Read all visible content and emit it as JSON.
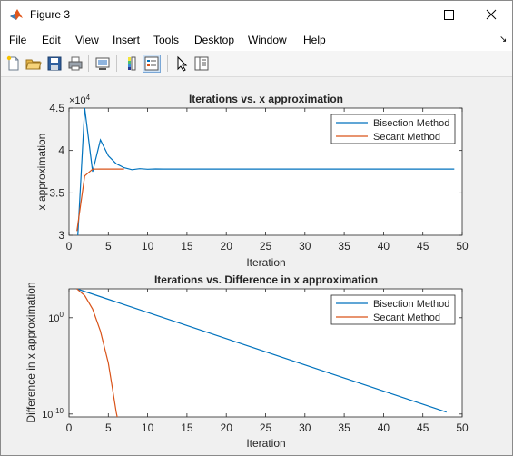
{
  "window": {
    "title": "Figure 3",
    "icon": "matlab-icon",
    "controls": [
      "minimize-icon",
      "maximize-icon",
      "close-icon"
    ]
  },
  "menu": [
    "File",
    "Edit",
    "View",
    "Insert",
    "Tools",
    "Desktop",
    "Window",
    "Help"
  ],
  "toolbar": {
    "icons": [
      "new-figure-icon",
      "open-file-icon",
      "save-icon",
      "print-icon",
      "link-plot-icon",
      "insert-colorbar-icon",
      "insert-legend-icon",
      "edit-plot-arrow-icon",
      "property-inspector-icon"
    ],
    "pressed": "insert-legend-icon"
  },
  "colors": {
    "series1": "#0072bd",
    "series2": "#d95319",
    "axes_bg": "#ffffff",
    "figure_bg": "#f0f0f0"
  },
  "plots": {
    "top": {
      "title": "Iterations vs. x approximation",
      "xlabel": "Iteration",
      "ylabel": "x approximation",
      "multiplier_base": "×10",
      "multiplier_exp": "4",
      "xticks": [
        "0",
        "5",
        "10",
        "15",
        "20",
        "25",
        "30",
        "35",
        "40",
        "45",
        "50"
      ],
      "yticks": [
        "3",
        "3.5",
        "4",
        "4.5"
      ],
      "legend": [
        "Bisection Method",
        "Secant Method"
      ]
    },
    "bottom": {
      "title": "Iterations vs. Difference in x approximation",
      "xlabel": "Iteration",
      "ylabel": "Difference in x approximation",
      "xticks": [
        "0",
        "5",
        "10",
        "15",
        "20",
        "25",
        "30",
        "35",
        "40",
        "45",
        "50"
      ],
      "yticks": [
        {
          "base": "10",
          "exp": "0"
        },
        {
          "base": "10",
          "exp": "-10"
        }
      ],
      "legend": [
        "Bisection Method",
        "Secant Method"
      ]
    }
  },
  "chart_data": [
    {
      "type": "line",
      "title": "Iterations vs. x approximation",
      "xlabel": "Iteration",
      "ylabel": "x approximation",
      "xlim": [
        0,
        50
      ],
      "ylim": [
        30000,
        45000
      ],
      "y_multiplier": "×10^4",
      "grid": false,
      "legend_position": "top-right",
      "series": [
        {
          "name": "Bisection Method",
          "x": [
            1,
            2,
            3,
            4,
            5,
            6,
            7,
            8,
            9,
            10,
            11,
            12,
            13,
            14,
            15,
            20,
            25,
            30,
            35,
            40,
            45,
            49
          ],
          "y": [
            28000,
            45000,
            37500,
            41250,
            39375,
            38438,
            37969,
            37734,
            37852,
            37793,
            37822,
            37808,
            37815,
            37811,
            37813,
            37812,
            37812,
            37812,
            37812,
            37812,
            37812,
            37812
          ]
        },
        {
          "name": "Secant Method",
          "x": [
            1,
            2,
            3,
            4,
            5,
            6,
            7
          ],
          "y": [
            30500,
            37000,
            37800,
            37812,
            37812,
            37812,
            37812
          ]
        }
      ]
    },
    {
      "type": "line",
      "title": "Iterations vs. Difference in x approximation",
      "xlabel": "Iteration",
      "ylabel": "Difference in x approximation",
      "xlim": [
        0,
        50
      ],
      "y_scale": "log",
      "ylim_log10": [
        -10.3,
        3
      ],
      "grid": false,
      "legend_position": "top-right",
      "series": [
        {
          "name": "Bisection Method",
          "x": [
            1,
            48
          ],
          "log10_y": [
            3,
            -9.8
          ]
        },
        {
          "name": "Secant Method",
          "x": [
            1,
            2,
            3,
            4,
            5,
            5.5,
            6,
            6.3
          ],
          "log10_y": [
            3,
            2.3,
            0.9,
            -1.4,
            -4.7,
            -7.2,
            -9.8,
            -11
          ]
        }
      ]
    }
  ]
}
